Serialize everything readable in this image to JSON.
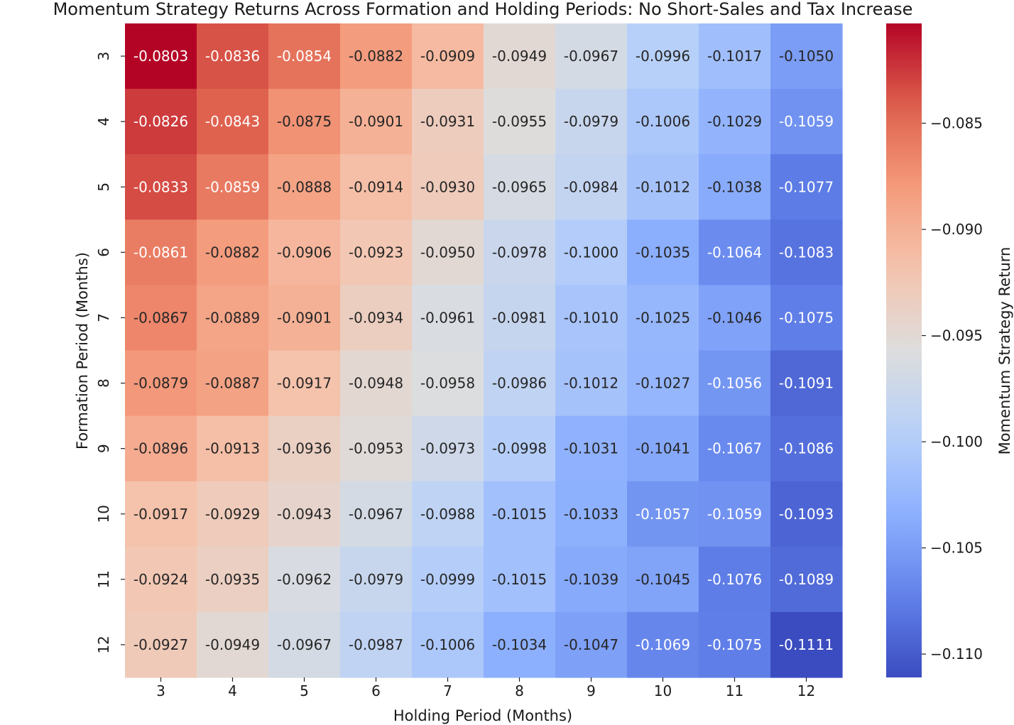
{
  "chart_data": {
    "type": "heatmap",
    "title": "Momentum Strategy Returns Across Formation and Holding Periods: No Short-Sales and Tax Increase",
    "xlabel": "Holding Period (Months)",
    "ylabel": "Formation Period (Months)",
    "x_categories": [
      "3",
      "4",
      "5",
      "6",
      "7",
      "8",
      "9",
      "10",
      "11",
      "12"
    ],
    "y_categories": [
      "3",
      "4",
      "5",
      "6",
      "7",
      "8",
      "9",
      "10",
      "11",
      "12"
    ],
    "values": [
      [
        -0.0803,
        -0.0836,
        -0.0854,
        -0.0882,
        -0.0909,
        -0.0949,
        -0.0967,
        -0.0996,
        -0.1017,
        -0.105
      ],
      [
        -0.0826,
        -0.0843,
        -0.0875,
        -0.0901,
        -0.0931,
        -0.0955,
        -0.0979,
        -0.1006,
        -0.1029,
        -0.1059
      ],
      [
        -0.0833,
        -0.0859,
        -0.0888,
        -0.0914,
        -0.093,
        -0.0965,
        -0.0984,
        -0.1012,
        -0.1038,
        -0.1077
      ],
      [
        -0.0861,
        -0.0882,
        -0.0906,
        -0.0923,
        -0.095,
        -0.0978,
        -0.1,
        -0.1035,
        -0.1064,
        -0.1083
      ],
      [
        -0.0867,
        -0.0889,
        -0.0901,
        -0.0934,
        -0.0961,
        -0.0981,
        -0.101,
        -0.1025,
        -0.1046,
        -0.1075
      ],
      [
        -0.0879,
        -0.0887,
        -0.0917,
        -0.0948,
        -0.0958,
        -0.0986,
        -0.1012,
        -0.1027,
        -0.1056,
        -0.1091
      ],
      [
        -0.0896,
        -0.0913,
        -0.0936,
        -0.0953,
        -0.0973,
        -0.0998,
        -0.1031,
        -0.1041,
        -0.1067,
        -0.1086
      ],
      [
        -0.0917,
        -0.0929,
        -0.0943,
        -0.0967,
        -0.0988,
        -0.1015,
        -0.1033,
        -0.1057,
        -0.1059,
        -0.1093
      ],
      [
        -0.0924,
        -0.0935,
        -0.0962,
        -0.0979,
        -0.0999,
        -0.1015,
        -0.1039,
        -0.1045,
        -0.1076,
        -0.1089
      ],
      [
        -0.0927,
        -0.0949,
        -0.0967,
        -0.0987,
        -0.1006,
        -0.1034,
        -0.1047,
        -0.1069,
        -0.1075,
        -0.1111
      ]
    ],
    "colormap": "coolwarm",
    "colorbar": {
      "label": "Momentum Strategy Return",
      "ticks": [
        -0.085,
        -0.09,
        -0.095,
        -0.1,
        -0.105,
        -0.11
      ],
      "tick_labels": [
        "−0.085",
        "−0.090",
        "−0.095",
        "−0.100",
        "−0.105",
        "−0.110"
      ],
      "range": [
        -0.1111,
        -0.0803
      ],
      "placement": "right"
    },
    "annotations": "cell values shown with 4 decimals",
    "grid": false
  }
}
